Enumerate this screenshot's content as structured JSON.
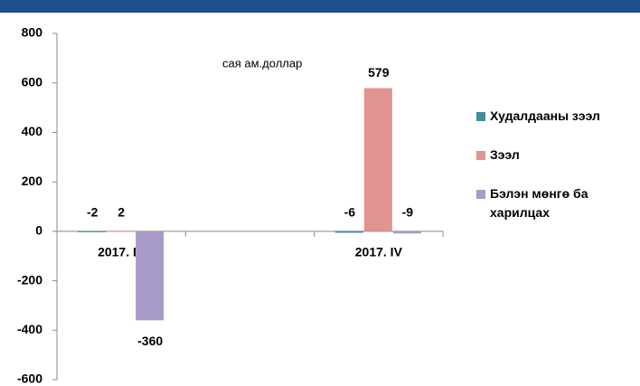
{
  "chart_data": {
    "type": "bar",
    "annotation": "сая ам.доллар",
    "categories": [
      "2017. IV",
      null,
      "2017. IV"
    ],
    "series": [
      {
        "name": "Худалдааны зээл",
        "color": "#3f8e9c",
        "values": [
          -2,
          null,
          -6
        ]
      },
      {
        "name": "Зээл",
        "color": "#e0938f",
        "values": [
          2,
          null,
          579
        ]
      },
      {
        "name": "Бэлэн мөнгө ба харилцах",
        "color": "#a99bc9",
        "values": [
          -360,
          null,
          -9
        ]
      }
    ],
    "ylim": [
      -600,
      800
    ],
    "yticks": [
      -600,
      -400,
      -200,
      0,
      200,
      400,
      600,
      800
    ],
    "legend": "right"
  }
}
